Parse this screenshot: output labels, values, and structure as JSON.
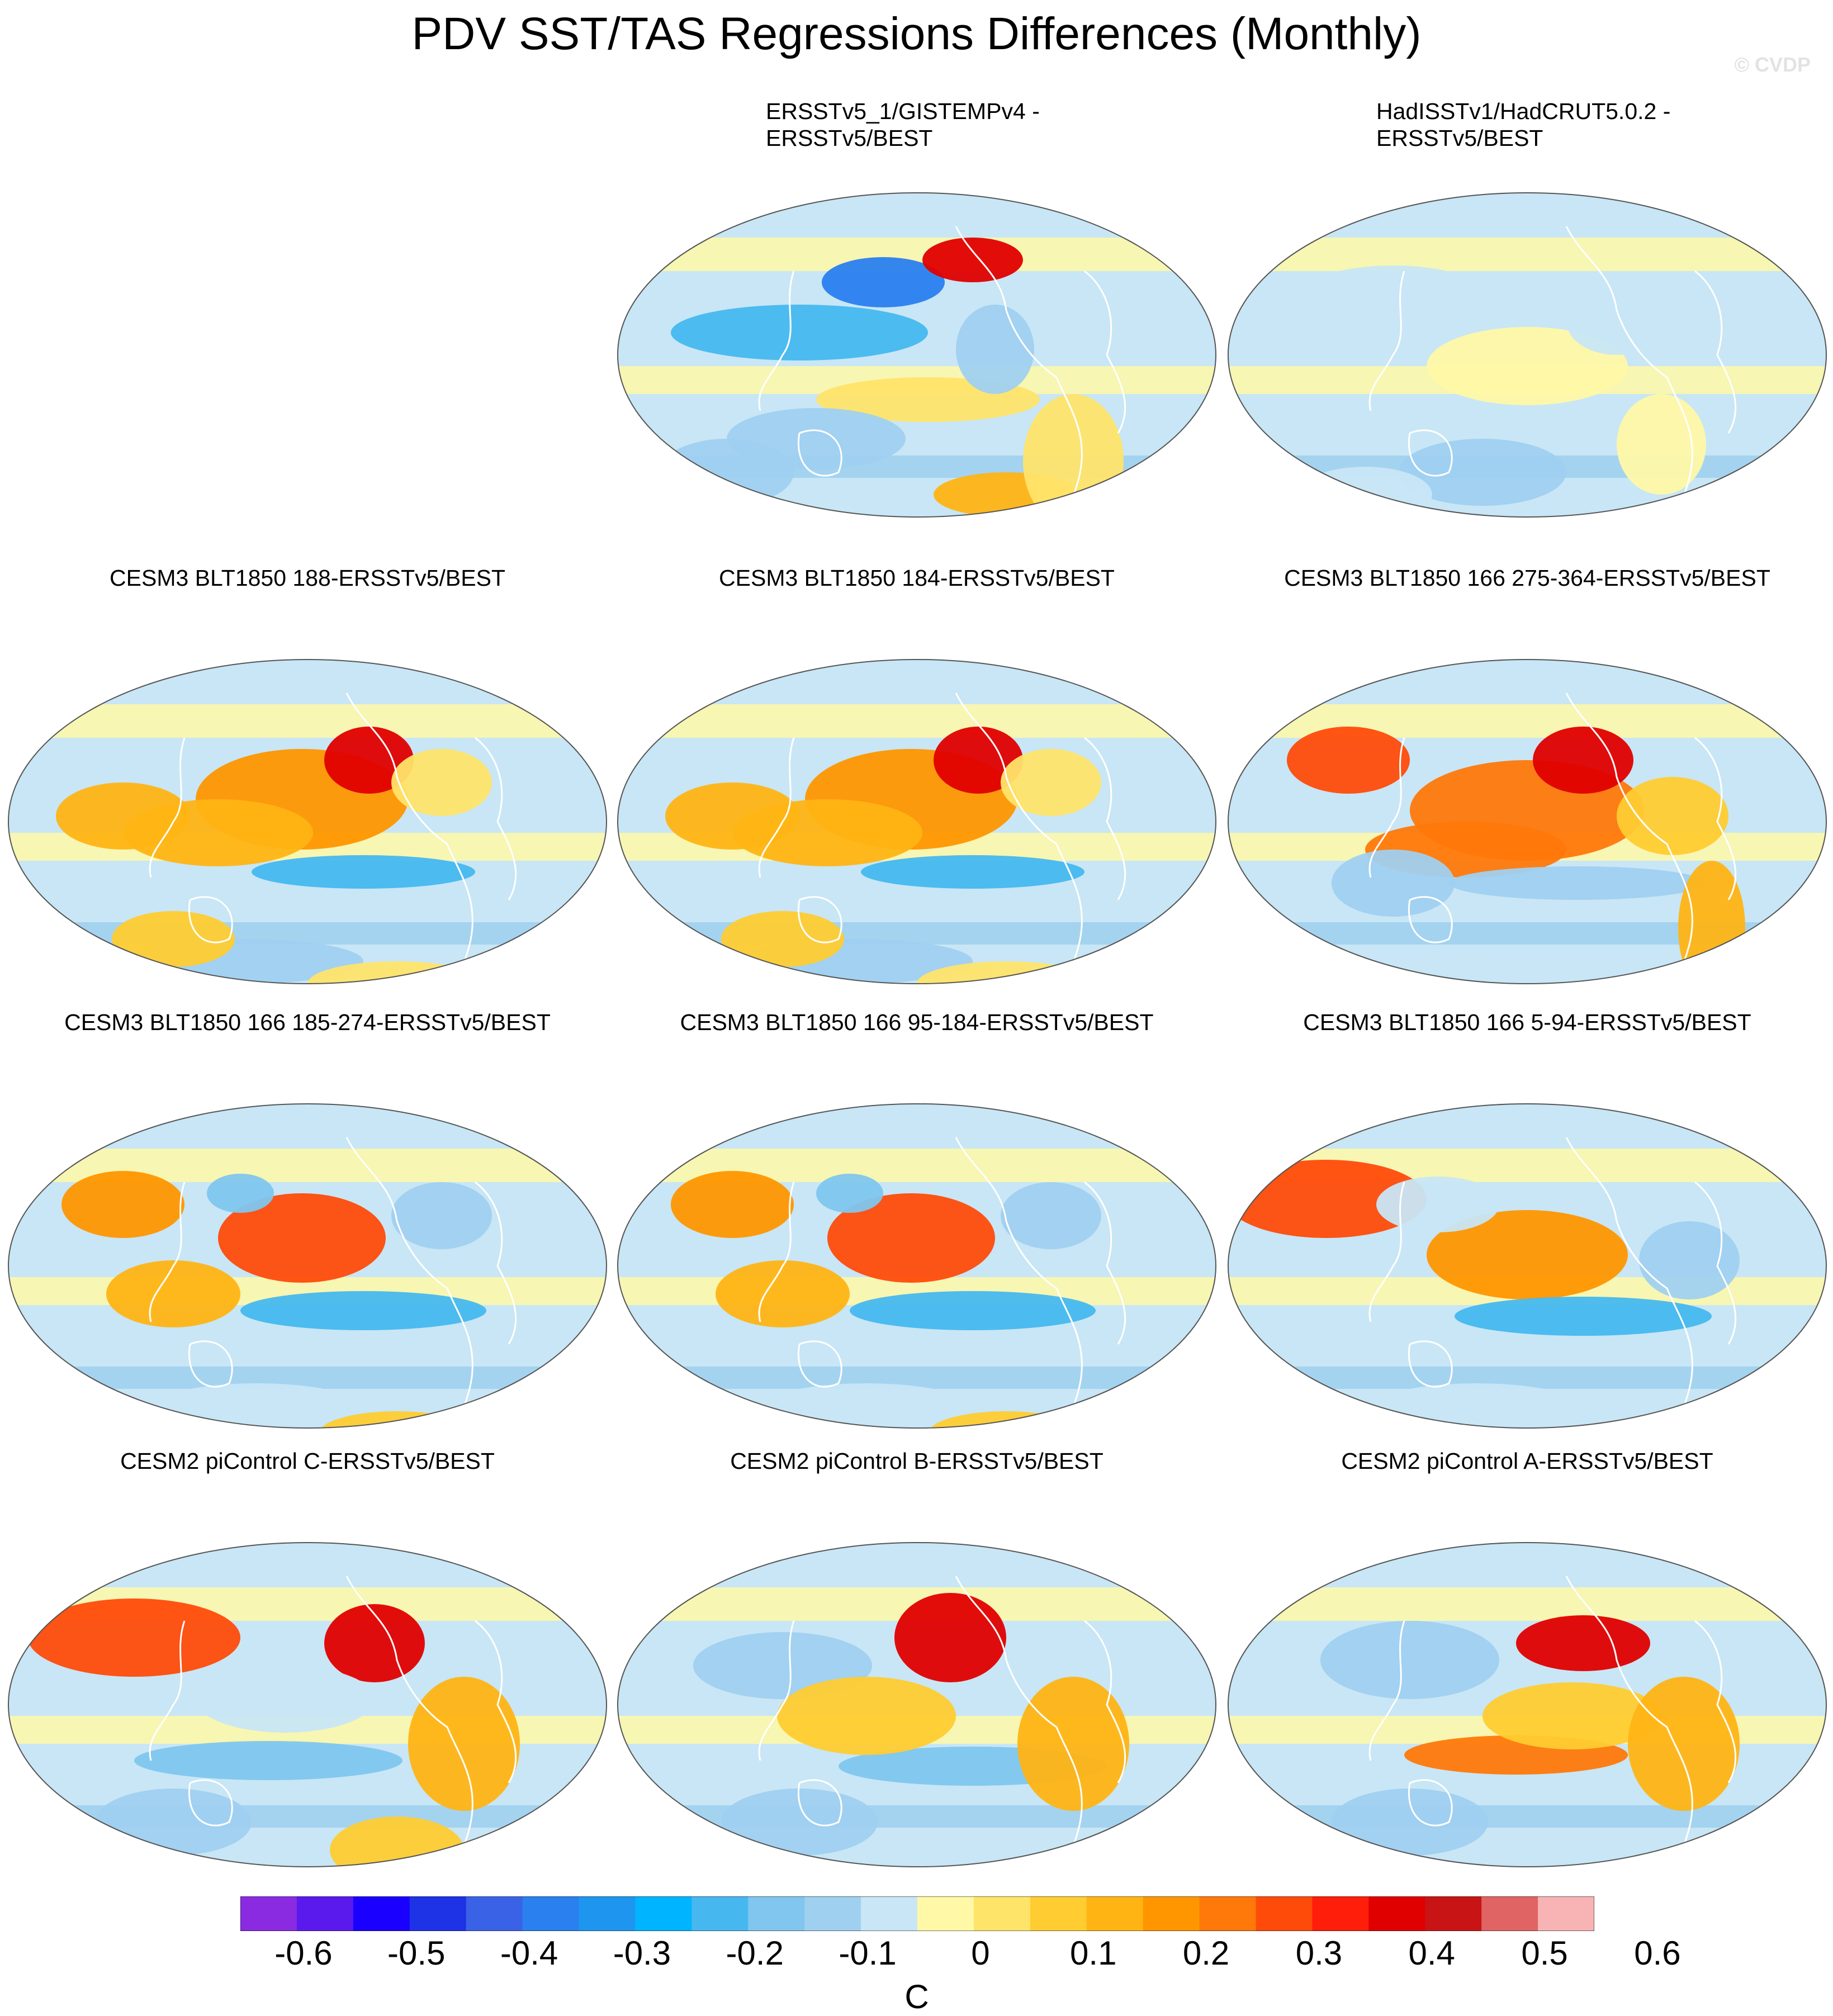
{
  "header": {
    "title": "PDV SST/TAS Regressions Differences (Monthly)",
    "credit": "© CVDP"
  },
  "panels": [
    {
      "id": "p01",
      "line1": "ERSSTv5_1/GISTEMPv4 -",
      "line2": "ERSSTv5/BEST"
    },
    {
      "id": "p02",
      "line1": "HadISSTv1/HadCRUT5.0.2 -",
      "line2": "ERSSTv5/BEST"
    },
    {
      "id": "p03",
      "line1": "CESM3 BLT1850 188-ERSSTv5/BEST"
    },
    {
      "id": "p04",
      "line1": "CESM3 BLT1850 184-ERSSTv5/BEST"
    },
    {
      "id": "p05",
      "line1": "CESM3 BLT1850 166 275-364-ERSSTv5/BEST"
    },
    {
      "id": "p06",
      "line1": "CESM3 BLT1850 166 185-274-ERSSTv5/BEST"
    },
    {
      "id": "p07",
      "line1": "CESM3 BLT1850 166 95-184-ERSSTv5/BEST"
    },
    {
      "id": "p08",
      "line1": "CESM3 BLT1850 166 5-94-ERSSTv5/BEST"
    },
    {
      "id": "p09",
      "line1": "CESM2 piControl C-ERSSTv5/BEST"
    },
    {
      "id": "p10",
      "line1": "CESM2 piControl B-ERSSTv5/BEST"
    },
    {
      "id": "p11",
      "line1": "CESM2 piControl A-ERSSTv5/BEST"
    }
  ],
  "colorbar": {
    "unit": "C",
    "tick_labels": [
      "-0.6",
      "-0.5",
      "-0.4",
      "-0.3",
      "-0.2",
      "-0.1",
      "0",
      "0.1",
      "0.2",
      "0.3",
      "0.4",
      "0.5",
      "0.6"
    ],
    "colors": [
      "#8a2be2",
      "#5a1aee",
      "#1a00ff",
      "#1e32e6",
      "#3a62e6",
      "#2a80ef",
      "#1e96ef",
      "#00b4ff",
      "#46b8ef",
      "#80c6ee",
      "#a0d0f0",
      "#c8e6f5",
      "#fff8a6",
      "#ffe46a",
      "#ffcc32",
      "#ffb414",
      "#ff9600",
      "#ff780a",
      "#ff4b0a",
      "#ff1e0a",
      "#e00000",
      "#c81414",
      "#e06464",
      "#f8b4b4"
    ]
  }
}
